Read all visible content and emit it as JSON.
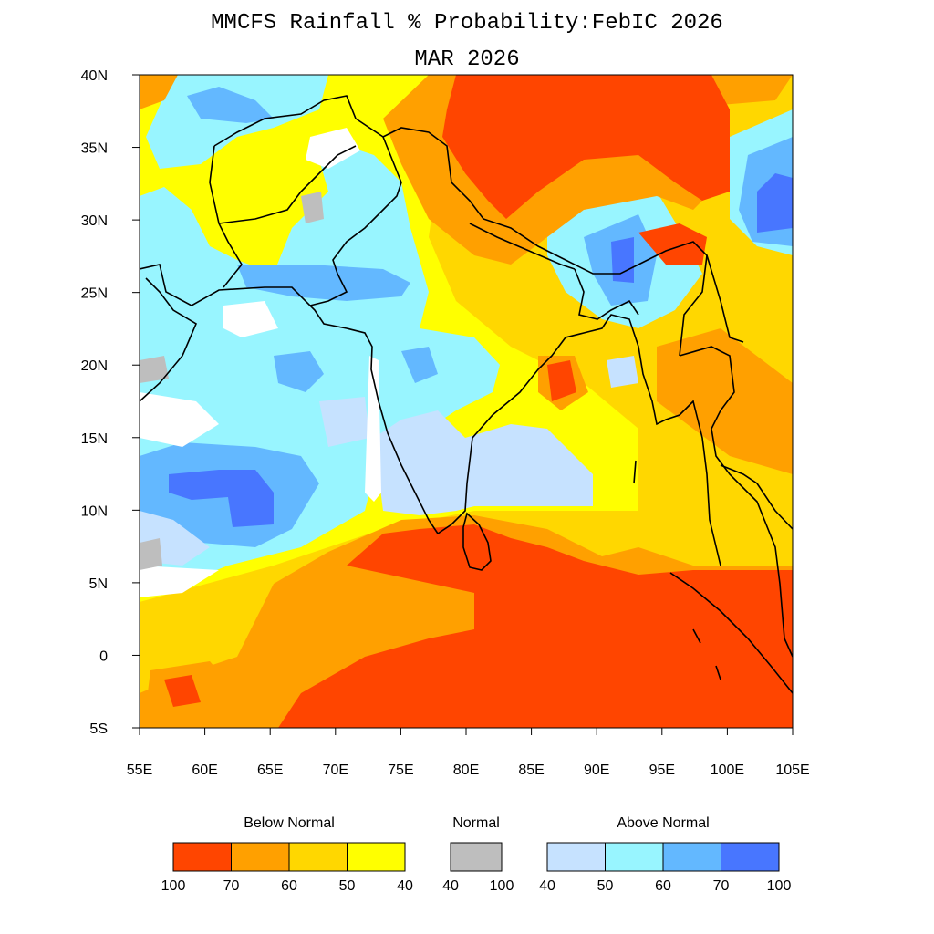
{
  "title": "MMCFS Rainfall % Probability:FebIC 2026",
  "subtitle": "MAR 2026",
  "map": {
    "lat_ticks": [
      "40N",
      "35N",
      "30N",
      "25N",
      "20N",
      "15N",
      "10N",
      "5N",
      "0",
      "5S"
    ],
    "lon_ticks": [
      "55E",
      "60E",
      "65E",
      "70E",
      "75E",
      "80E",
      "85E",
      "90E",
      "95E",
      "100E",
      "105E"
    ],
    "extent": {
      "lon": [
        55,
        105
      ],
      "lat": [
        -5,
        40
      ]
    }
  },
  "legend": {
    "below": {
      "title": "Below Normal",
      "colors": [
        "#ff4500",
        "#ffa000",
        "#ffd700",
        "#ffff00"
      ],
      "labels": [
        "100",
        "70",
        "60",
        "50",
        "40"
      ]
    },
    "normal": {
      "title": "Normal",
      "colors": [
        "#bebebe"
      ],
      "labels": [
        "40",
        "100"
      ]
    },
    "above": {
      "title": "Above Normal",
      "colors": [
        "#c6e2ff",
        "#98f5ff",
        "#63b8ff",
        "#4876ff"
      ],
      "labels": [
        "40",
        "50",
        "60",
        "70",
        "100"
      ]
    }
  }
}
